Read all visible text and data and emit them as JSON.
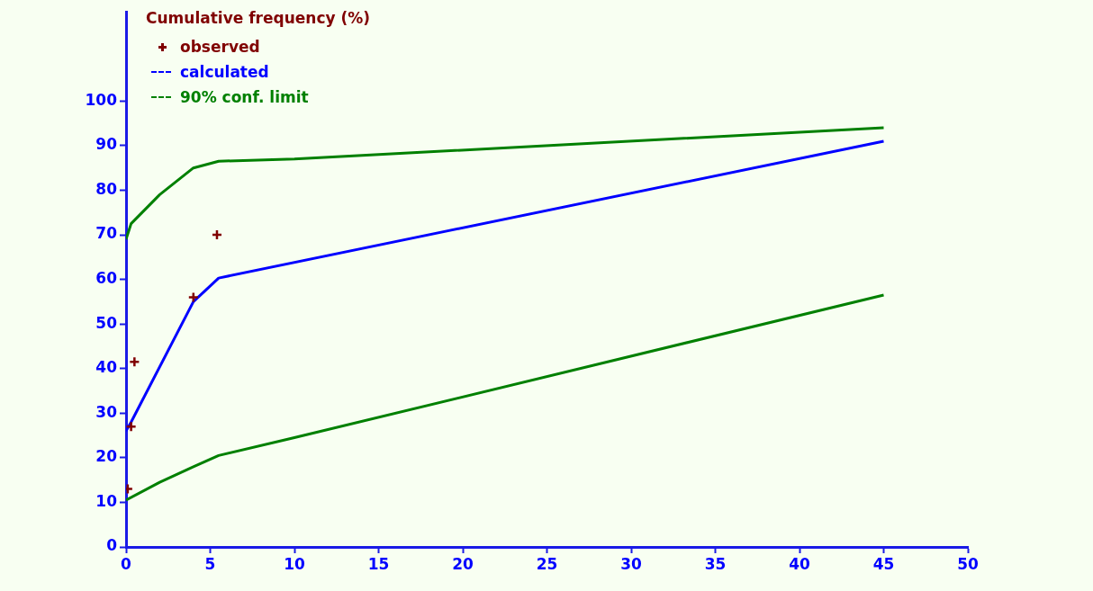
{
  "chart_data": {
    "type": "line",
    "ylabel": "Cumulative frequency (%)",
    "xlim": [
      0,
      50
    ],
    "xticks": [
      0,
      5,
      10,
      15,
      20,
      25,
      30,
      35,
      40,
      45,
      50
    ],
    "ylim": [
      0,
      120
    ],
    "yticks": [
      0,
      10,
      20,
      30,
      40,
      50,
      60,
      70,
      80,
      90,
      100
    ],
    "grid": false,
    "legend": "top left",
    "series": [
      {
        "name": "observed",
        "type": "scatter",
        "marker": "cross",
        "color": "#800000",
        "x": [
          0.1,
          0.3,
          0.5,
          4,
          5.4
        ],
        "values": [
          13,
          27,
          41.5,
          56,
          70
        ]
      },
      {
        "name": "calculated",
        "color": "#0000ff",
        "x": [
          0,
          0.3,
          4,
          5.5,
          45
        ],
        "values": [
          26,
          28,
          55,
          60.3,
          91
        ]
      },
      {
        "name": "90% conf. limit",
        "color": "#008000",
        "x": [
          0,
          0.3,
          2,
          4,
          5.5,
          10,
          45
        ],
        "values": [
          69,
          72.5,
          79,
          85,
          86.5,
          87,
          94
        ]
      },
      {
        "color": "#008000",
        "x": [
          0,
          2,
          4,
          5.5,
          10,
          45
        ],
        "values": [
          10.5,
          14.5,
          18,
          20.5,
          24.5,
          56.5
        ]
      }
    ]
  }
}
